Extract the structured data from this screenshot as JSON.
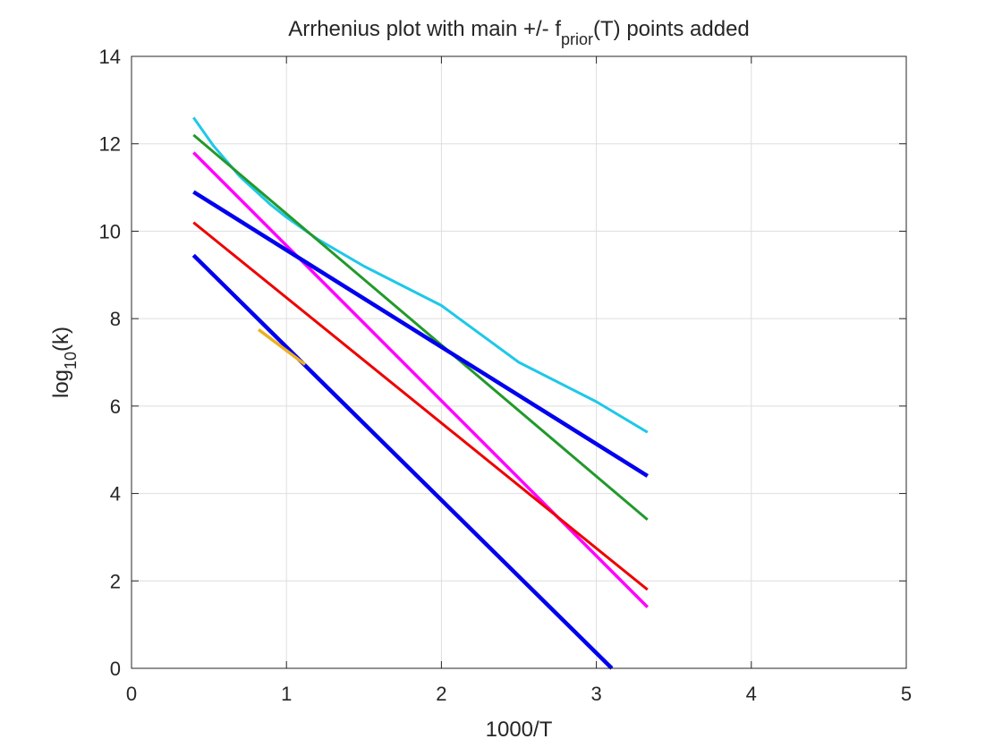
{
  "chart_data": {
    "type": "line",
    "title_main": "Arrhenius plot with main +/- f",
    "title_sub": "prior",
    "title_tail": "(T) points added",
    "xlabel": "1000/T",
    "ylabel_main": "log",
    "ylabel_sub": "10",
    "ylabel_tail": "(k)",
    "xlim": [
      0,
      5
    ],
    "ylim": [
      0,
      14
    ],
    "xticks": [
      0,
      1,
      2,
      3,
      4,
      5
    ],
    "yticks": [
      0,
      2,
      4,
      6,
      8,
      10,
      12,
      14
    ],
    "xtick_labels": [
      "0",
      "1",
      "2",
      "3",
      "4",
      "5"
    ],
    "ytick_labels": [
      "0",
      "2",
      "4",
      "6",
      "8",
      "10",
      "12",
      "14"
    ],
    "grid": true,
    "series": [
      {
        "color": "#1ec8e8",
        "width": 3,
        "points": [
          [
            0.4,
            12.6
          ],
          [
            0.53,
            11.95
          ],
          [
            0.7,
            11.25
          ],
          [
            0.9,
            10.6
          ],
          [
            1.0,
            10.32
          ],
          [
            1.2,
            9.82
          ],
          [
            1.5,
            9.2
          ],
          [
            2.0,
            8.3
          ],
          [
            2.5,
            7.0
          ],
          [
            3.0,
            6.1
          ],
          [
            3.33,
            5.4
          ]
        ]
      },
      {
        "color": "#22992a",
        "width": 3,
        "points": [
          [
            0.4,
            12.2
          ],
          [
            3.33,
            3.4
          ]
        ]
      },
      {
        "color": "#ff00ff",
        "width": 3.5,
        "points": [
          [
            0.4,
            11.8
          ],
          [
            3.33,
            1.4
          ]
        ]
      },
      {
        "color": "#0000ee",
        "width": 4.5,
        "points": [
          [
            0.4,
            10.9
          ],
          [
            3.33,
            4.4
          ]
        ]
      },
      {
        "color": "#ee0000",
        "width": 3,
        "points": [
          [
            0.4,
            10.2
          ],
          [
            3.33,
            1.8
          ]
        ]
      },
      {
        "color": "#0000ee",
        "width": 4.5,
        "points": [
          [
            0.4,
            9.45
          ],
          [
            3.1,
            0.0
          ]
        ]
      },
      {
        "color": "#edb120",
        "width": 3.5,
        "points": [
          [
            0.82,
            7.75
          ],
          [
            1.12,
            6.95
          ]
        ]
      }
    ]
  }
}
